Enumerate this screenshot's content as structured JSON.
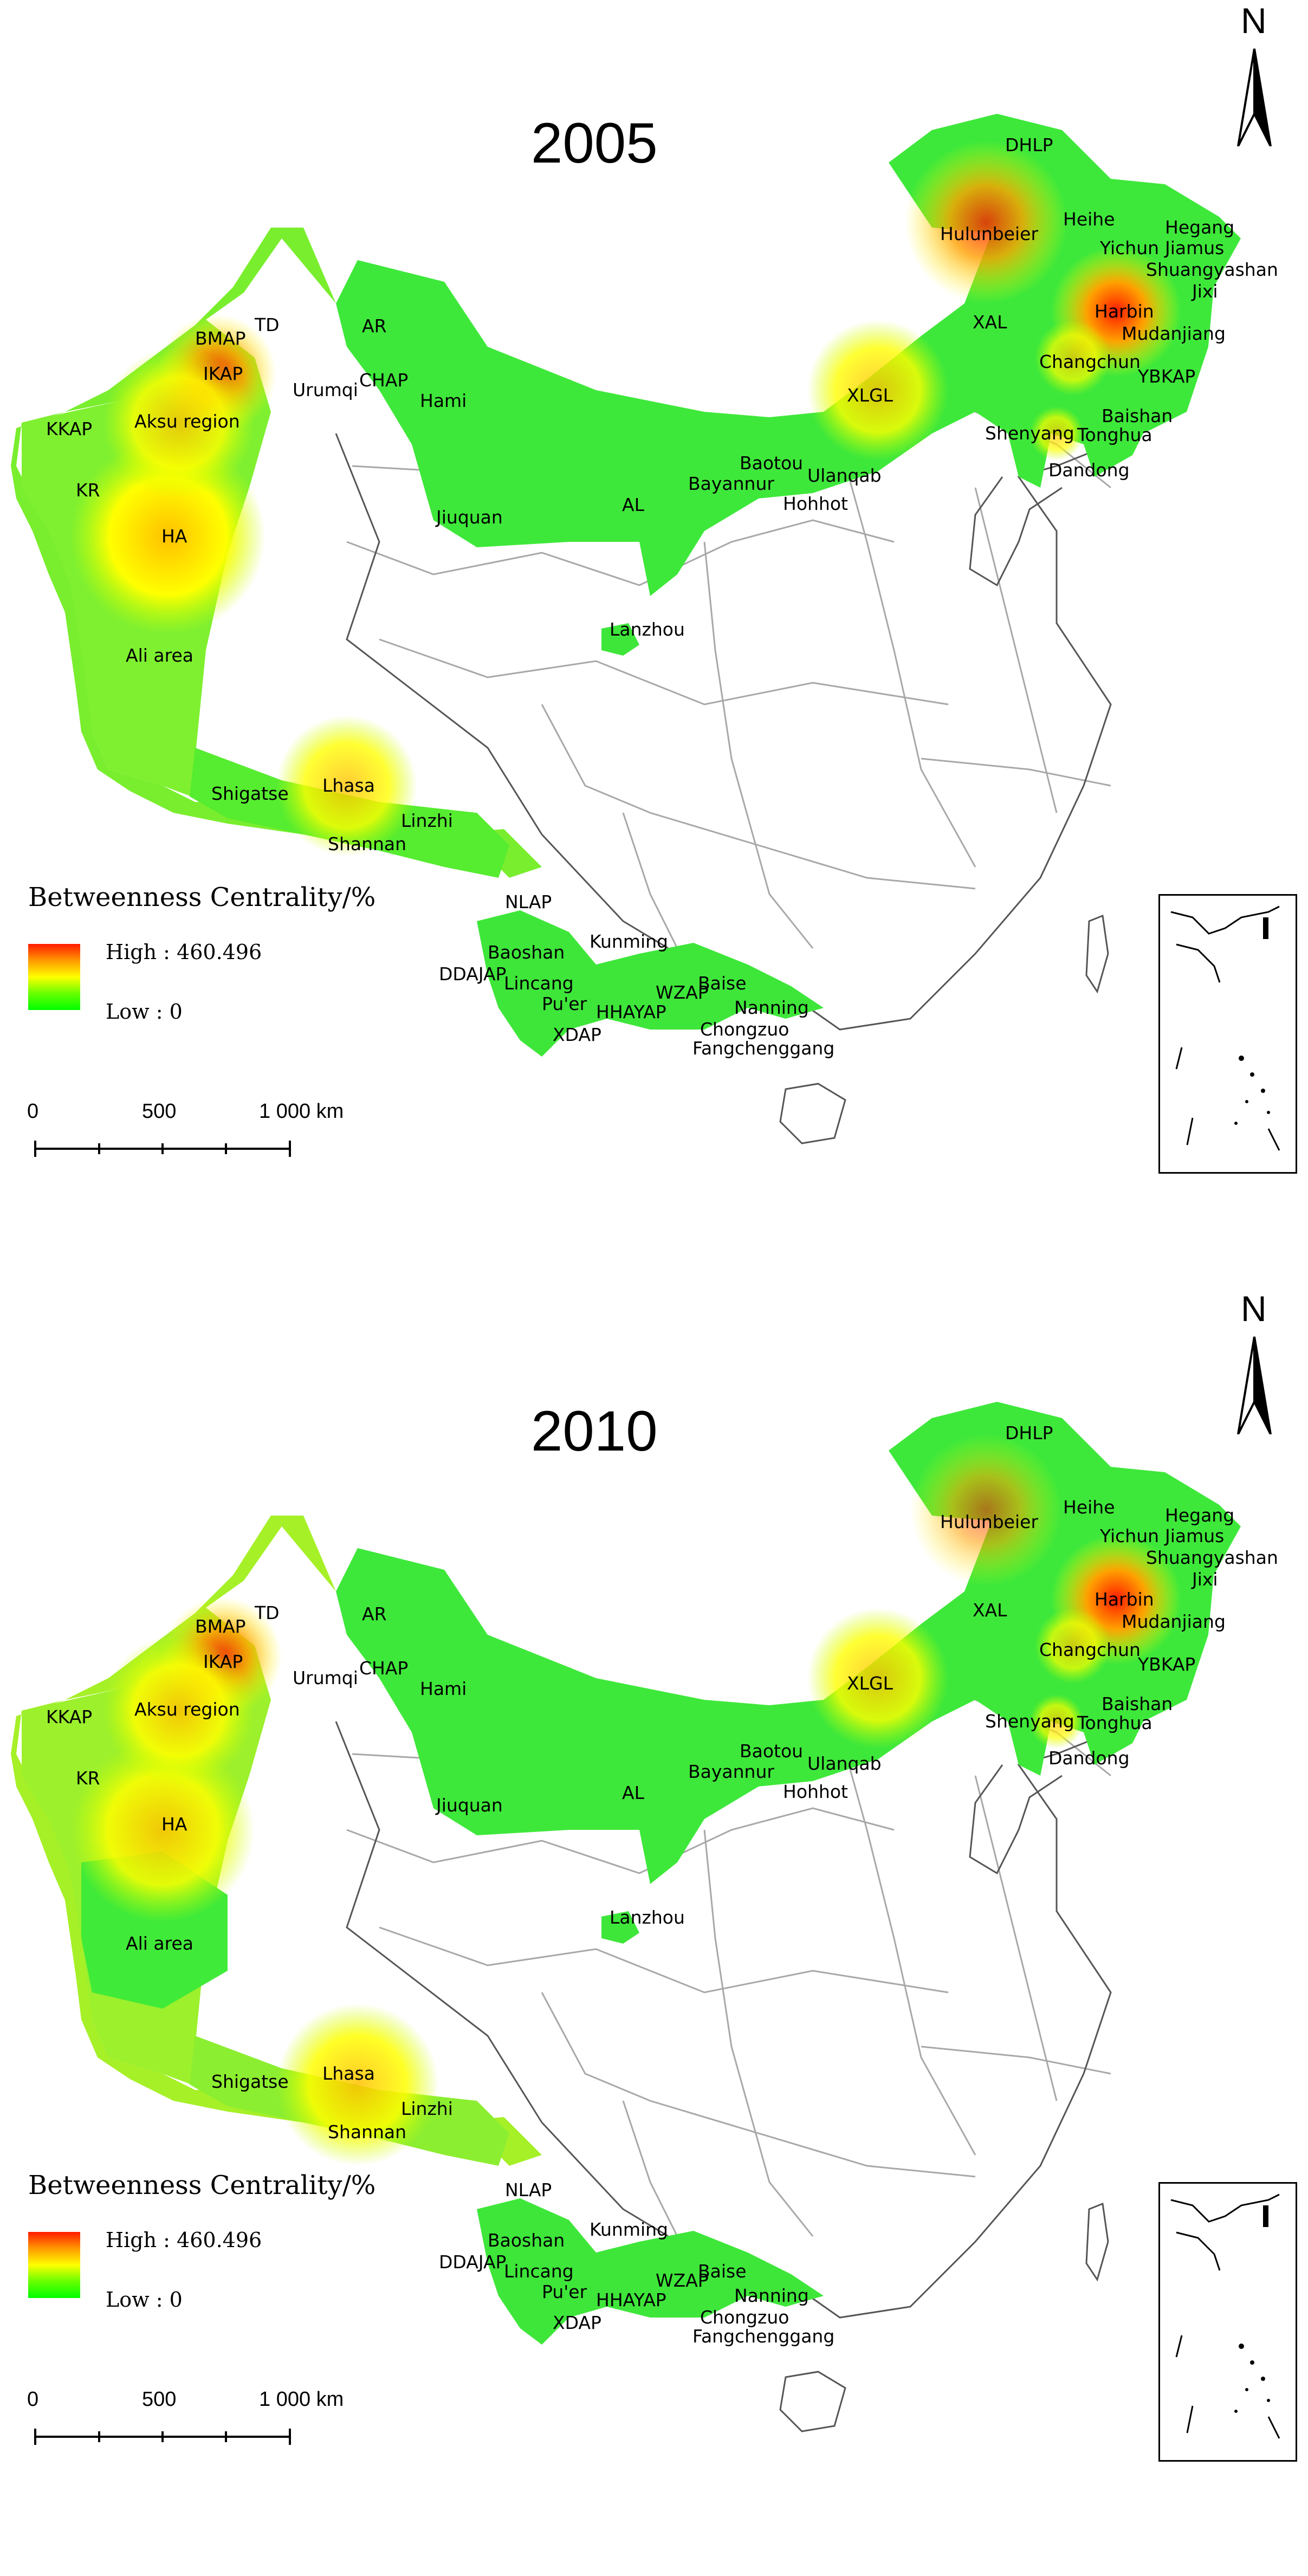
{
  "panels": [
    {
      "year": "2005",
      "north": "N",
      "legend": {
        "title": "Betweenness Centrality/%",
        "high": "High : 460.496",
        "low": "Low : 0"
      },
      "scale": {
        "t0": "0",
        "t1": "500",
        "t2": "1 000 km"
      },
      "labels": [
        "DHLP",
        "Hulunbeier",
        "Heihe",
        "Hegang",
        "Yichun",
        "Jiamus",
        "Shuangyashan",
        "Harbin",
        "Jixi",
        "Mudanjiang",
        "XAL",
        "Changchun",
        "YBKAP",
        "Baishan",
        "Tonghua",
        "Shenyang",
        "Dandong",
        "XLGL",
        "Baotou",
        "Ulanqab",
        "Bayannur",
        "Hohhot",
        "AL",
        "Jiuquan",
        "Hami",
        "TD",
        "AR",
        "BMAP",
        "IKAP",
        "CHAP",
        "Urumqi",
        "KKAP",
        "Aksu region",
        "KR",
        "HA",
        "Ali area",
        "Lanzhou",
        "Shigatse",
        "Lhasa",
        "Linzhi",
        "Shannan",
        "NLAP",
        "Baoshan",
        "DDAJAP",
        "Lincang",
        "Pu'er",
        "XDAP",
        "Kunming",
        "HHAYAP",
        "WZAP",
        "Baise",
        "Nanning",
        "Chongzuo",
        "Fangchenggang"
      ]
    },
    {
      "year": "2010",
      "north": "N",
      "legend": {
        "title": "Betweenness Centrality/%",
        "high": "High : 460.496",
        "low": "Low : 0"
      },
      "scale": {
        "t0": "0",
        "t1": "500",
        "t2": "1 000 km"
      },
      "labels": [
        "DHLP",
        "Hulunbeier",
        "Heihe",
        "Hegang",
        "Yichun",
        "Jiamus",
        "Shuangyashan",
        "Harbin",
        "Jixi",
        "Mudanjiang",
        "XAL",
        "Changchun",
        "YBKAP",
        "Baishan",
        "Tonghua",
        "Shenyang",
        "Dandong",
        "XLGL",
        "Baotou",
        "Ulanqab",
        "Bayannur",
        "Hohhot",
        "AL",
        "Jiuquan",
        "Hami",
        "TD",
        "AR",
        "BMAP",
        "IKAP",
        "CHAP",
        "Urumqi",
        "KKAP",
        "Aksu region",
        "KR",
        "HA",
        "Ali area",
        "Lanzhou",
        "Shigatse",
        "Lhasa",
        "Linzhi",
        "Shannan",
        "NLAP",
        "Baoshan",
        "DDAJAP",
        "Lincang",
        "Pu'er",
        "XDAP",
        "Kunming",
        "HHAYAP",
        "WZAP",
        "Baise",
        "Nanning",
        "Chongzuo",
        "Fangchenggang"
      ]
    }
  ],
  "colors": {
    "high": "#ff1a00",
    "mid": "#ffff00",
    "low": "#00ff00",
    "boundary": "#9a9a9a"
  }
}
